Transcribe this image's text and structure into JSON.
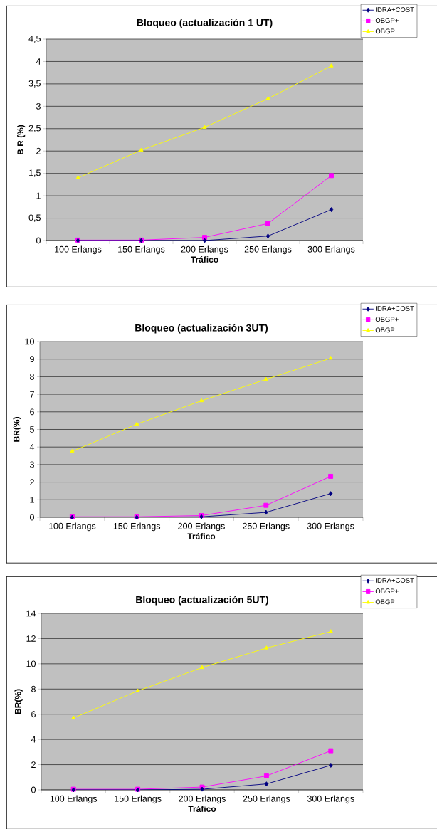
{
  "chart_data": [
    {
      "type": "line",
      "title": "Bloqueo (actualización 1 UT)",
      "xlabel": "Tráfico",
      "ylabel": "B R  (%)",
      "categories": [
        "100 Erlangs",
        "150 Erlangs",
        "200 Erlangs",
        "250 Erlangs",
        "300 Erlangs"
      ],
      "series": [
        {
          "name": "IDRA+COST",
          "color": "#000080",
          "marker": "diamond",
          "values": [
            0,
            0,
            0,
            0.1,
            0.69
          ]
        },
        {
          "name": "OBGP+",
          "color": "#ff00ff",
          "marker": "square",
          "values": [
            0.01,
            0.01,
            0.07,
            0.38,
            1.45
          ]
        },
        {
          "name": "OBGP",
          "color": "#ffff00",
          "marker": "triangle",
          "values": [
            1.4,
            2.02,
            2.53,
            3.17,
            3.9
          ]
        }
      ],
      "ylim": [
        0,
        4.5
      ],
      "yticks": [
        0,
        {
          "value": 0.5,
          "label": "0,5"
        },
        1,
        {
          "value": 1.5,
          "label": "1,5"
        },
        2,
        {
          "value": 2.5,
          "label": "2,5"
        },
        3,
        {
          "value": 3.5,
          "label": "3,5"
        },
        4,
        {
          "value": 4.5,
          "label": "4,5"
        }
      ],
      "grid": "y",
      "legend": "top right"
    },
    {
      "type": "line",
      "title": "Bloqueo (actualización 3UT)",
      "xlabel": "Tráfico",
      "ylabel": "BR(%)",
      "categories": [
        "100 Erlangs",
        "150 Erlangs",
        "200 Erlangs",
        "250 Erlangs",
        "300 Erlangs"
      ],
      "series": [
        {
          "name": "IDRA+COST",
          "color": "#000080",
          "marker": "diamond",
          "values": [
            0,
            0,
            0.03,
            0.28,
            1.35
          ]
        },
        {
          "name": "OBGP+",
          "color": "#ff00ff",
          "marker": "square",
          "values": [
            0.03,
            0.03,
            0.1,
            0.68,
            2.33
          ]
        },
        {
          "name": "OBGP",
          "color": "#ffff00",
          "marker": "triangle",
          "values": [
            3.75,
            5.3,
            6.63,
            7.85,
            9.05
          ]
        }
      ],
      "ylim": [
        0,
        10
      ],
      "yticks": [
        0,
        1,
        2,
        3,
        4,
        5,
        6,
        7,
        8,
        9,
        10
      ],
      "grid": "y",
      "legend": "top right"
    },
    {
      "type": "line",
      "title": "Bloqueo (actualización 5UT)",
      "xlabel": "Tráfico",
      "ylabel": "BR(%)",
      "categories": [
        "100 Erlangs",
        "150 Erlangs",
        "200 Erlangs",
        "250 Erlangs",
        "300 Erlangs"
      ],
      "series": [
        {
          "name": "IDRA+COST",
          "color": "#000080",
          "marker": "diamond",
          "values": [
            0,
            0,
            0.05,
            0.47,
            1.95
          ]
        },
        {
          "name": "OBGP+",
          "color": "#ff00ff",
          "marker": "square",
          "values": [
            0.05,
            0.05,
            0.22,
            1.1,
            3.1
          ]
        },
        {
          "name": "OBGP",
          "color": "#ffff00",
          "marker": "triangle",
          "values": [
            5.7,
            7.85,
            9.7,
            11.25,
            12.55
          ]
        }
      ],
      "ylim": [
        0,
        14
      ],
      "yticks": [
        0,
        2,
        4,
        6,
        8,
        10,
        12,
        14
      ],
      "grid": "y",
      "legend": "top right"
    }
  ]
}
